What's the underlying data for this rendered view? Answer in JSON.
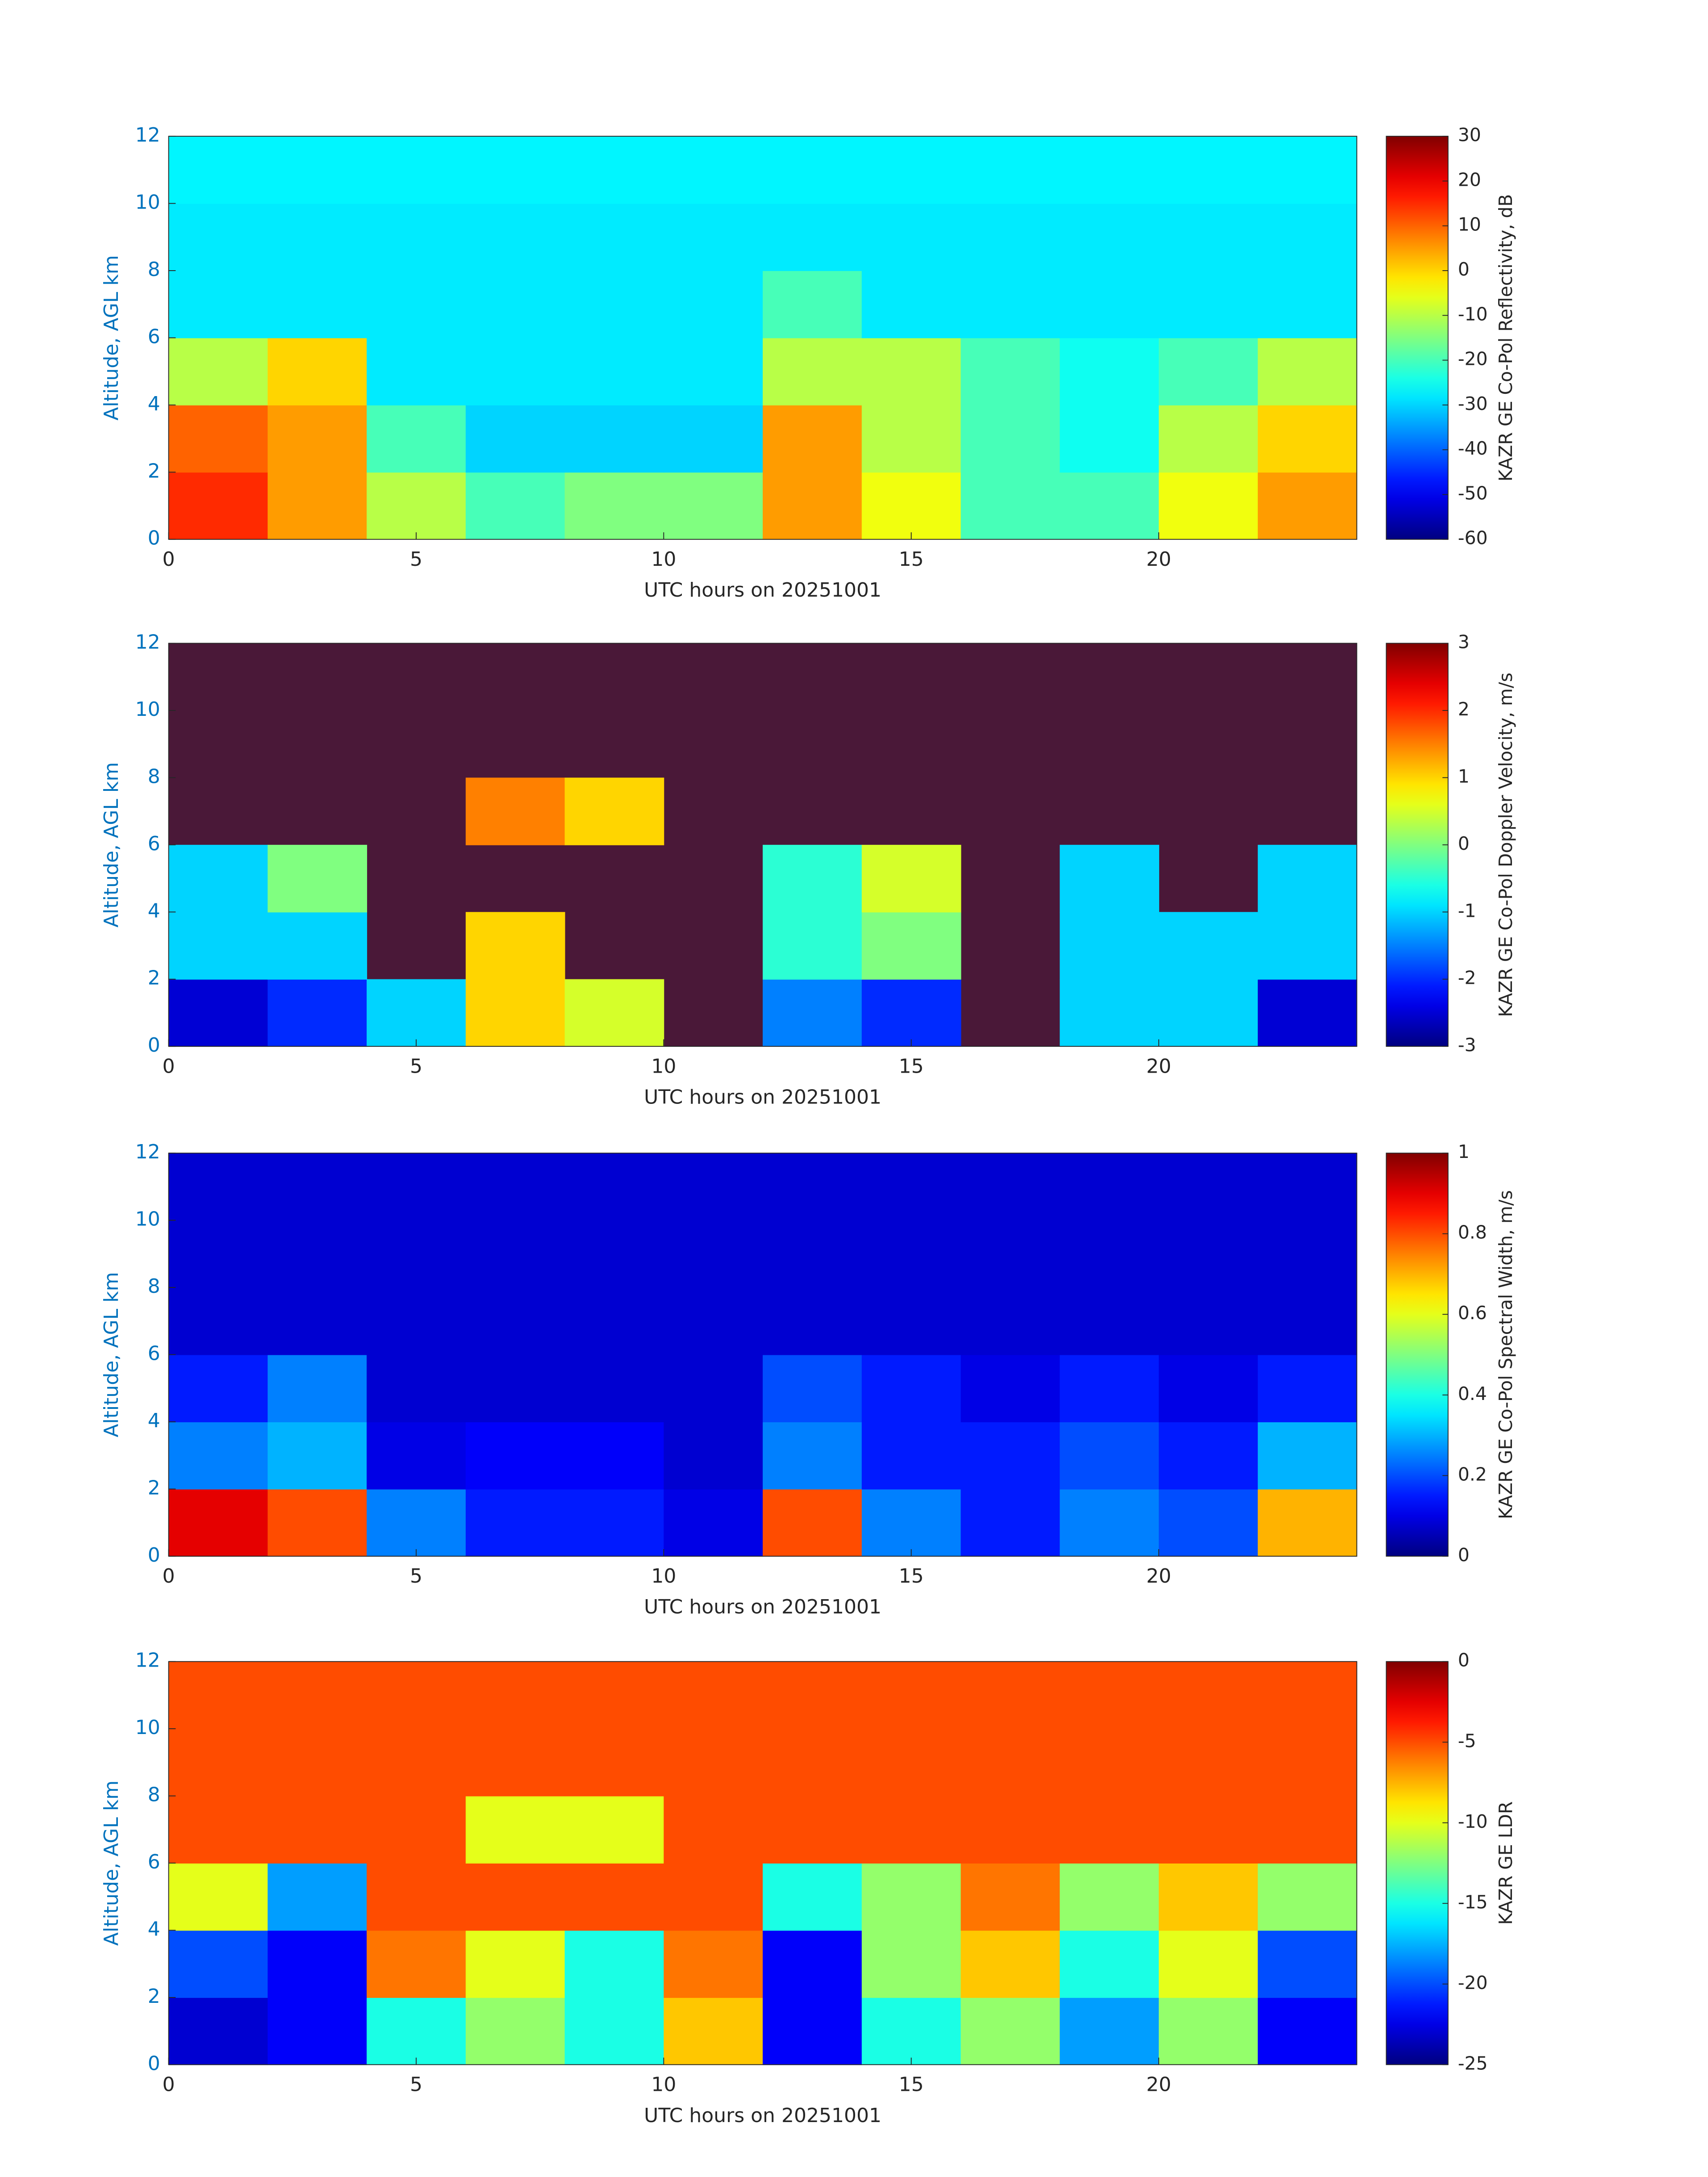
{
  "chart_data": [
    {
      "type": "heatmap",
      "xlabel": "UTC hours on 20251001",
      "ylabel": "Altitude, AGL km",
      "colorbar_label": "KAZR GE Co-Pol Reflectivity, dB",
      "x": [
        0,
        2,
        4,
        6,
        8,
        10,
        12,
        14,
        16,
        18,
        20,
        22,
        24
      ],
      "y": [
        0,
        2,
        4,
        6,
        8,
        10,
        12
      ],
      "values": [
        [
          15,
          5,
          -10,
          -20,
          -15,
          -15,
          5,
          -5,
          -20,
          -20,
          -5,
          5
        ],
        [
          10,
          5,
          -20,
          -30,
          -30,
          -30,
          5,
          -10,
          -20,
          -25,
          -10,
          0
        ],
        [
          -10,
          0,
          -28,
          -28,
          -28,
          -28,
          -10,
          -10,
          -20,
          -25,
          -20,
          -10
        ],
        [
          -28,
          -28,
          -28,
          -28,
          -28,
          -28,
          -20,
          -28,
          -28,
          -28,
          -28,
          -28
        ],
        [
          -28,
          -28,
          -28,
          -28,
          -28,
          -28,
          -28,
          -28,
          -28,
          -28,
          -28,
          -28
        ],
        [
          -27,
          -27,
          -27,
          -27,
          -27,
          -27,
          -27,
          -27,
          -27,
          -27,
          -27,
          -27
        ]
      ],
      "xlim": [
        0,
        24
      ],
      "ylim": [
        0,
        12
      ],
      "xticks": [
        0,
        5,
        10,
        15,
        20
      ],
      "yticks": [
        0,
        2,
        4,
        6,
        8,
        10,
        12
      ],
      "clim": [
        -60,
        30
      ],
      "cticks": [
        -60,
        -50,
        -40,
        -30,
        -20,
        -10,
        0,
        10,
        20,
        30
      ],
      "colormap": "jet"
    },
    {
      "type": "heatmap",
      "xlabel": "UTC hours on 20251001",
      "ylabel": "Altitude, AGL km",
      "colorbar_label": "KAZR GE Co-Pol Doppler Velocity, m/s",
      "x": [
        0,
        2,
        4,
        6,
        8,
        10,
        12,
        14,
        16,
        18,
        20,
        22,
        24
      ],
      "y": [
        0,
        2,
        4,
        6,
        8,
        10,
        12
      ],
      "values": [
        [
          -2.5,
          -2,
          -1,
          1,
          0.5,
          null,
          -1.5,
          -2,
          null,
          -1,
          -1,
          -2.5
        ],
        [
          -1,
          -1,
          null,
          1,
          null,
          null,
          -0.5,
          0,
          null,
          -1,
          -1,
          -1
        ],
        [
          -1,
          0,
          null,
          null,
          null,
          null,
          -0.5,
          0.5,
          null,
          -1,
          null,
          -1
        ],
        [
          null,
          null,
          null,
          1.5,
          1,
          null,
          null,
          null,
          null,
          null,
          null,
          null
        ],
        [
          null,
          null,
          null,
          null,
          null,
          null,
          null,
          null,
          null,
          null,
          null,
          null
        ],
        [
          null,
          null,
          null,
          null,
          null,
          null,
          null,
          null,
          null,
          null,
          null,
          null
        ]
      ],
      "xlim": [
        0,
        24
      ],
      "ylim": [
        0,
        12
      ],
      "xticks": [
        0,
        5,
        10,
        15,
        20
      ],
      "yticks": [
        0,
        2,
        4,
        6,
        8,
        10,
        12
      ],
      "clim": [
        -3,
        3
      ],
      "cticks": [
        -3,
        -2,
        -1,
        0,
        1,
        2,
        3
      ],
      "colormap": "jet"
    },
    {
      "type": "heatmap",
      "xlabel": "UTC hours on 20251001",
      "ylabel": "Altitude, AGL km",
      "colorbar_label": "KAZR GE Co-Pol Spectral Width, m/s",
      "x": [
        0,
        2,
        4,
        6,
        8,
        10,
        12,
        14,
        16,
        18,
        20,
        22,
        24
      ],
      "y": [
        0,
        2,
        4,
        6,
        8,
        10,
        12
      ],
      "values": [
        [
          0.9,
          0.8,
          0.25,
          0.15,
          0.15,
          0.1,
          0.8,
          0.25,
          0.15,
          0.25,
          0.2,
          0.7
        ],
        [
          0.25,
          0.3,
          0.1,
          0.12,
          0.12,
          0.08,
          0.25,
          0.15,
          0.15,
          0.2,
          0.15,
          0.3
        ],
        [
          0.15,
          0.25,
          0.08,
          0.08,
          0.08,
          0.08,
          0.2,
          0.15,
          0.1,
          0.15,
          0.1,
          0.15
        ],
        [
          0.08,
          0.08,
          0.08,
          0.08,
          0.08,
          0.08,
          0.08,
          0.08,
          0.08,
          0.08,
          0.08,
          0.08
        ],
        [
          0.08,
          0.08,
          0.08,
          0.08,
          0.08,
          0.08,
          0.08,
          0.08,
          0.08,
          0.08,
          0.08,
          0.08
        ],
        [
          0.08,
          0.08,
          0.08,
          0.08,
          0.08,
          0.08,
          0.08,
          0.08,
          0.08,
          0.08,
          0.08,
          0.08
        ]
      ],
      "xlim": [
        0,
        24
      ],
      "ylim": [
        0,
        12
      ],
      "xticks": [
        0,
        5,
        10,
        15,
        20
      ],
      "yticks": [
        0,
        2,
        4,
        6,
        8,
        10,
        12
      ],
      "clim": [
        0,
        1
      ],
      "cticks": [
        0,
        0.2,
        0.4,
        0.6,
        0.8,
        1
      ],
      "colormap": "jet"
    },
    {
      "type": "heatmap",
      "xlabel": "UTC hours on 20251001",
      "ylabel": "Altitude, AGL km",
      "colorbar_label": "KAZR GE LDR",
      "x": [
        0,
        2,
        4,
        6,
        8,
        10,
        12,
        14,
        16,
        18,
        20,
        22,
        24
      ],
      "y": [
        0,
        2,
        4,
        6,
        8,
        10,
        12
      ],
      "values": [
        [
          -23,
          -22,
          -15,
          -12,
          -15,
          -8,
          -22,
          -15,
          -12,
          -18,
          -12,
          -22
        ],
        [
          -20,
          -22,
          -6,
          -10,
          -15,
          -6,
          -22,
          -12,
          -8,
          -15,
          -10,
          -20
        ],
        [
          -10,
          -18,
          -5,
          -5,
          -5,
          -5,
          -15,
          -12,
          -6,
          -12,
          -8,
          -12
        ],
        [
          -5,
          -5,
          -5,
          -10,
          -10,
          -5,
          -5,
          -5,
          -5,
          -5,
          -5,
          -5
        ],
        [
          -5,
          -5,
          -5,
          -5,
          -5,
          -5,
          -5,
          -5,
          -5,
          -5,
          -5,
          -5
        ],
        [
          -5,
          -5,
          -5,
          -5,
          -5,
          -5,
          -5,
          -5,
          -5,
          -5,
          -5,
          -5
        ]
      ],
      "xlim": [
        0,
        24
      ],
      "ylim": [
        0,
        12
      ],
      "xticks": [
        0,
        5,
        10,
        15,
        20
      ],
      "yticks": [
        0,
        2,
        4,
        6,
        8,
        10,
        12
      ],
      "clim": [
        -25,
        0
      ],
      "cticks": [
        -25,
        -20,
        -15,
        -10,
        -5,
        0
      ],
      "colormap": "jet"
    }
  ]
}
